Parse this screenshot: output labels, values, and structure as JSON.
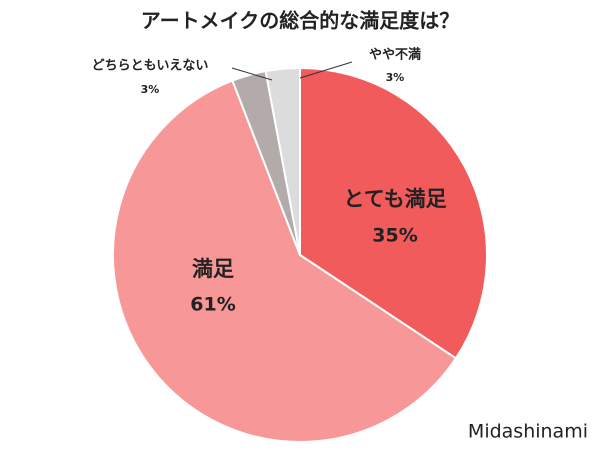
{
  "chart_data": {
    "type": "pie",
    "title": "アートメイクの総合的な満足度は？",
    "categories": [
      "とても満足",
      "満足",
      "どちらともいえない",
      "やや不満"
    ],
    "values": [
      35,
      61,
      3,
      3
    ],
    "value_labels": [
      "35%",
      "61%",
      "3%",
      "3%"
    ],
    "colors": [
      "#f25b5b",
      "#f89797",
      "#b3aaaa",
      "#dcdcdc"
    ],
    "watermark": "Midashinami"
  }
}
